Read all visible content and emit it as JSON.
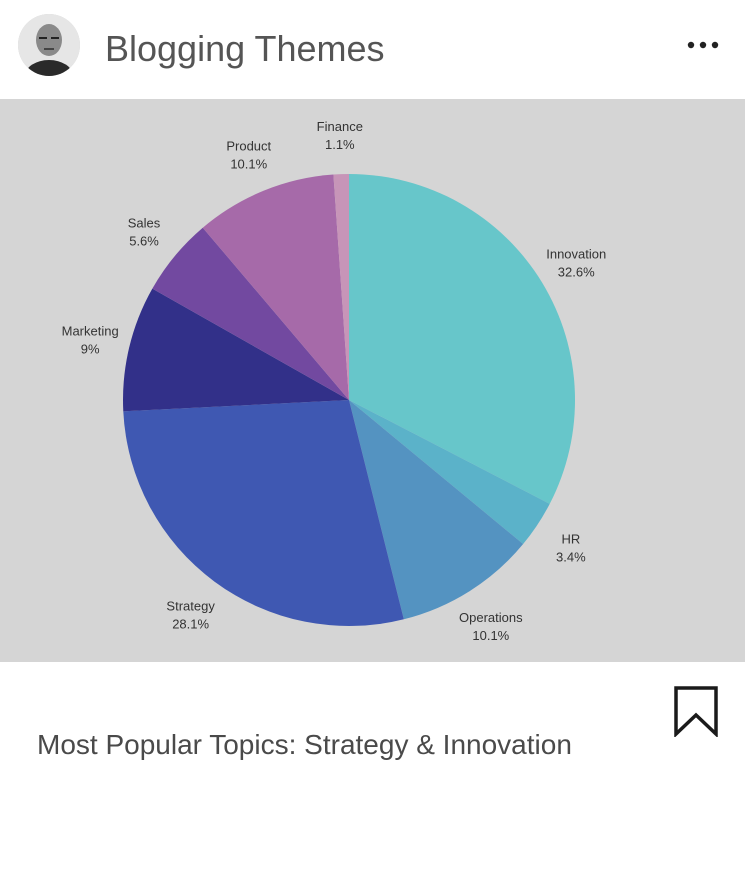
{
  "header": {
    "title": "Blogging Themes",
    "avatar_icon": "person-avatar-icon",
    "menu_icon": "more-dots-icon"
  },
  "chart_data": {
    "type": "pie",
    "slices": [
      {
        "label": "Innovation",
        "value": 32.6,
        "display": "32.6%",
        "color": "#67c6ca"
      },
      {
        "label": "HR",
        "value": 3.4,
        "display": "3.4%",
        "color": "#5bb2c9"
      },
      {
        "label": "Operations",
        "value": 10.1,
        "display": "10.1%",
        "color": "#5493c1"
      },
      {
        "label": "Strategy",
        "value": 28.1,
        "display": "28.1%",
        "color": "#3f58b2"
      },
      {
        "label": "Marketing",
        "value": 9,
        "display": "9%",
        "color": "#323089"
      },
      {
        "label": "Sales",
        "value": 5.6,
        "display": "5.6%",
        "color": "#7249a0"
      },
      {
        "label": "Product",
        "value": 10.1,
        "display": "10.1%",
        "color": "#a66aa9"
      },
      {
        "label": "Finance",
        "value": 1.1,
        "display": "1.1%",
        "color": "#c795b8"
      }
    ]
  },
  "post": {
    "caption": "Most Popular Topics: Strategy & Innovation",
    "bookmark_icon": "bookmark-icon"
  }
}
